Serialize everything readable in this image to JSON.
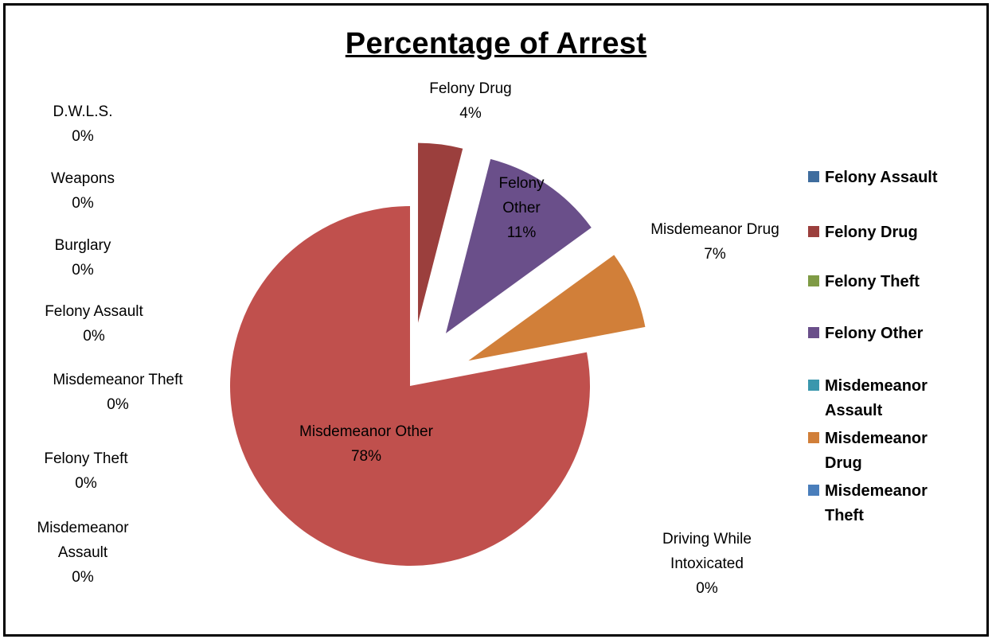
{
  "chart_data": {
    "type": "pie",
    "title": "Percentage of Arrest",
    "slices": [
      {
        "key": "felony_drug",
        "name": "Felony Drug",
        "value": 4,
        "label": "4%",
        "color": "#9b3f3d",
        "exploded": true
      },
      {
        "key": "felony_other",
        "name": "Felony Other",
        "value": 11,
        "label": "11%",
        "color": "#6a4f8a",
        "exploded": true
      },
      {
        "key": "misdemeanor_drug",
        "name": "Misdemeanor Drug",
        "value": 7,
        "label": "7%",
        "color": "#d17f39",
        "exploded": true
      },
      {
        "key": "misdemeanor_other",
        "name": "Misdemeanor Other",
        "value": 78,
        "label": "78%",
        "color": "#c0504d",
        "exploded": false
      }
    ],
    "zero_categories": [
      {
        "key": "dwls",
        "name": "D.W.L.S.",
        "label": "0%"
      },
      {
        "key": "weapons",
        "name": "Weapons",
        "label": "0%"
      },
      {
        "key": "burglary",
        "name": "Burglary",
        "label": "0%"
      },
      {
        "key": "felony_assault",
        "name": "Felony Assault",
        "label": "0%"
      },
      {
        "key": "misdemeanor_theft",
        "name": "Misdemeanor Theft",
        "label": "0%"
      },
      {
        "key": "felony_theft",
        "name": "Felony Theft",
        "label": "0%"
      },
      {
        "key": "misdemeanor_assault",
        "name": "Misdemeanor Assault",
        "label": "0%"
      },
      {
        "key": "dwi",
        "name": "Driving While Intoxicated",
        "label": "0%"
      }
    ],
    "legend": {
      "position": "right",
      "entries": [
        {
          "name": "Felony Assault",
          "color": "#3f6d9e"
        },
        {
          "name": "Felony Drug",
          "color": "#9b3f3d"
        },
        {
          "name": "Felony Theft",
          "color": "#7f9b45"
        },
        {
          "name": "Felony Other",
          "color": "#6a4f8a"
        },
        {
          "name": "Misdemeanor Assault",
          "color": "#3a97ad"
        },
        {
          "name": "Misdemeanor Drug",
          "color": "#d17f39"
        },
        {
          "name": "Misdemeanor Theft",
          "color": "#4a7ebb"
        }
      ]
    }
  }
}
